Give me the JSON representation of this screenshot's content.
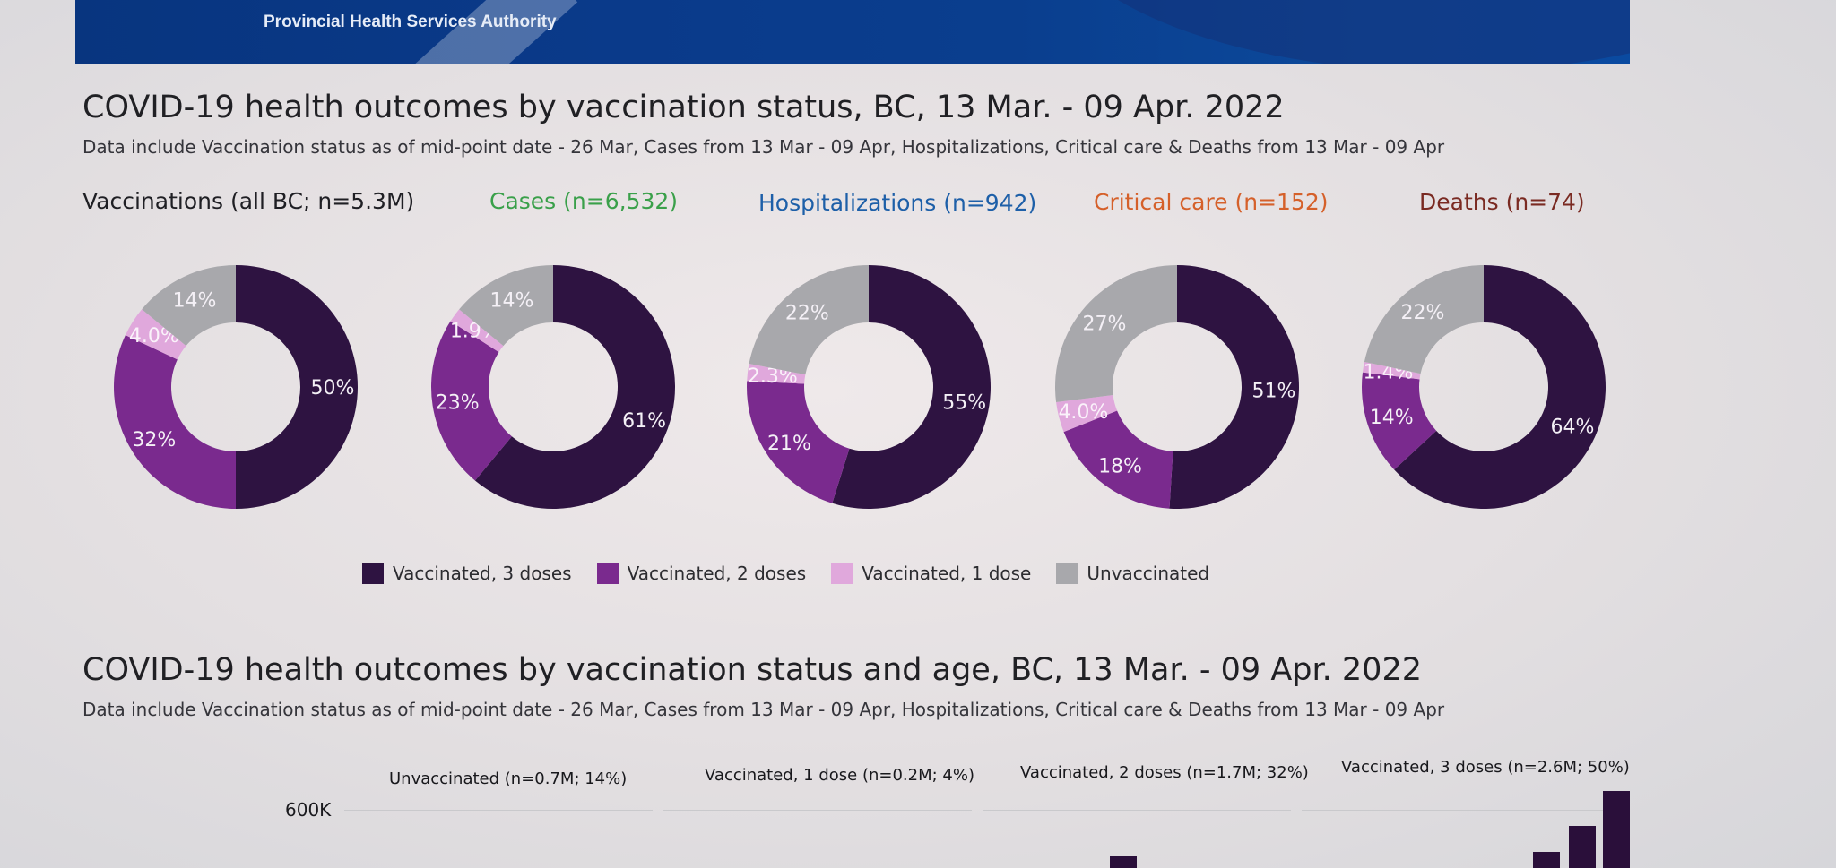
{
  "banner": {
    "org": "Provincial Health Services Authority"
  },
  "section1": {
    "title": "COVID-19 health outcomes by vaccination status, BC,  13 Mar. - 09 Apr. 2022",
    "subtitle": "Data include Vaccination status as of mid-point date - 26 Mar, Cases  from  13 Mar - 09 Apr, Hospitalizations, Critical care & Deaths from 13 Mar - 09 Apr"
  },
  "section2": {
    "title": "COVID-19 health outcomes by vaccination status and age, BC,  13 Mar. - 09 Apr. 2022",
    "subtitle": "Data include Vaccination status as of mid-point date - 26 Mar, Cases  from  13 Mar - 09 Apr, Hospitalizations, Critical care & Deaths from 13 Mar - 09 Apr",
    "panels": [
      "Unvaccinated (n=0.7M; 14%)",
      "Vaccinated, 1 dose (n=0.2M; 4%)",
      "Vaccinated, 2 doses (n=1.7M; 32%)",
      "Vaccinated, 3 doses (n=2.6M; 50%)"
    ],
    "y_tick": "600K"
  },
  "colors": {
    "dose3": "#2e1341",
    "dose2": "#7a2a8e",
    "dose1": "#e0a8dc",
    "unvax": "#a8a8ac"
  },
  "chart_data": {
    "type": "pie",
    "donut": true,
    "legend": [
      "Vaccinated, 3 doses",
      "Vaccinated, 2 doses",
      "Vaccinated, 1 dose",
      "Unvaccinated"
    ],
    "charts": [
      {
        "title": "Vaccinations (all BC; n=5.3M)",
        "title_color": "#1f1f24",
        "values": [
          50,
          32,
          4.0,
          14
        ],
        "labels": [
          "50%",
          "32%",
          "4.0%",
          "14%"
        ]
      },
      {
        "title": "Cases (n=6,532)",
        "title_color": "#3aa04a",
        "values": [
          61,
          23,
          1.9,
          14
        ],
        "labels": [
          "61%",
          "23%",
          "1.9%",
          "14%"
        ]
      },
      {
        "title": "Hospitalizations (n=942)",
        "title_color": "#1d5fa8",
        "values": [
          55,
          21,
          2.3,
          22
        ],
        "labels": [
          "55%",
          "21%",
          "2.3%",
          "22%"
        ]
      },
      {
        "title": "Critical care (n=152)",
        "title_color": "#d5602a",
        "values": [
          51,
          18,
          4.0,
          27
        ],
        "labels": [
          "51%",
          "18%",
          "4.0%",
          "27%"
        ]
      },
      {
        "title": "Deaths (n=74)",
        "title_color": "#7a2a22",
        "values": [
          64,
          14,
          1.4,
          22
        ],
        "labels": [
          "64%",
          "14%",
          "1.4%",
          "22%"
        ]
      }
    ]
  }
}
